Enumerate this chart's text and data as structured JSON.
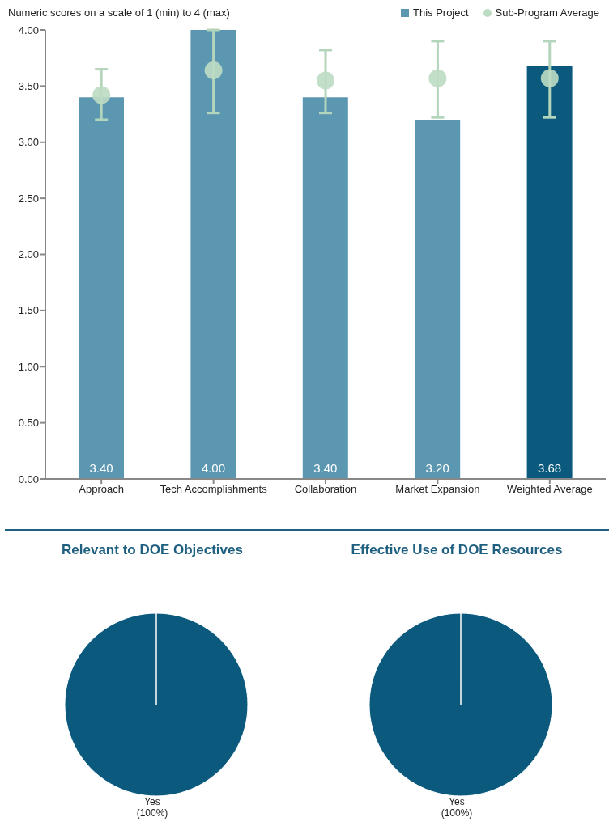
{
  "chart_data": [
    {
      "type": "bar",
      "title": "Numeric scores on a scale of 1 (min) to 4 (max)",
      "categories": [
        "Approach",
        "Tech Accomplishments",
        "Collaboration",
        "Market Expansion",
        "Weighted Average"
      ],
      "series": [
        {
          "name": "This Project",
          "type": "bar",
          "color": "#5b97b1",
          "colors": [
            "#5b97b1",
            "#5b97b1",
            "#5b97b1",
            "#5b97b1",
            "#0b5a7e"
          ],
          "values": [
            3.4,
            4.0,
            3.4,
            3.2,
            3.68
          ],
          "value_labels": [
            "3.40",
            "4.00",
            "3.40",
            "3.20",
            "3.68"
          ]
        },
        {
          "name": "Sub-Program Average",
          "type": "scatter",
          "color": "#bcdcc4",
          "values": [
            3.42,
            3.64,
            3.55,
            3.57,
            3.57
          ],
          "errors": [
            [
              3.2,
              3.65
            ],
            [
              3.26,
              4.0
            ],
            [
              3.26,
              3.82
            ],
            [
              3.22,
              3.9
            ],
            [
              3.22,
              3.9
            ]
          ]
        }
      ],
      "ylim": [
        0,
        4
      ],
      "yticks": [
        {
          "value": 0,
          "label": "0.00"
        },
        {
          "value": 0.5,
          "label": "0.50"
        },
        {
          "value": 1,
          "label": "1.00"
        },
        {
          "value": 1.5,
          "label": "1.50"
        },
        {
          "value": 2,
          "label": "2.00"
        },
        {
          "value": 2.5,
          "label": "2.50"
        },
        {
          "value": 3,
          "label": "3.00"
        },
        {
          "value": 3.5,
          "label": "3.50"
        },
        {
          "value": 4,
          "label": "4.00"
        }
      ],
      "legend": "top right",
      "marker": "circle"
    },
    {
      "type": "pie",
      "title": "Relevant to DOE Objectives",
      "categories": [
        "Yes"
      ],
      "values": [
        100
      ],
      "value_labels": [
        "(100%)"
      ],
      "colors": [
        "#0b5a7e"
      ]
    },
    {
      "type": "pie",
      "title": "Effective Use of DOE Resources",
      "categories": [
        "Yes"
      ],
      "values": [
        100
      ],
      "value_labels": [
        "(100%)"
      ],
      "colors": [
        "#0b5a7e"
      ]
    }
  ]
}
